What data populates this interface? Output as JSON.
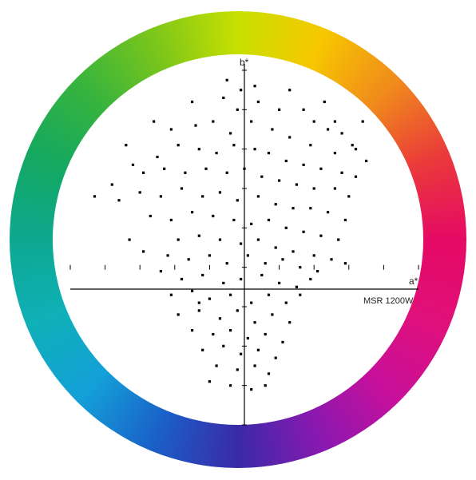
{
  "colors": {
    "ring_stops": [
      "#c8e000",
      "#f7c700",
      "#f08a1c",
      "#ea3a3a",
      "#e50a64",
      "#e0107a",
      "#c8109a",
      "#8a18b0",
      "#3a2aa8",
      "#1a60c8",
      "#14a0d8",
      "#0fb0b8",
      "#0ea890",
      "#14a860",
      "#38b43c",
      "#7cc61a",
      "#c8e000"
    ],
    "axis": "#000000",
    "point": "#000000"
  },
  "chart_data": {
    "type": "scatter",
    "title": "",
    "xlabel": "a*",
    "ylabel": "b*",
    "annotation": "MSR 1200W",
    "xlim": [
      -100,
      100
    ],
    "ylim": [
      -80,
      100
    ],
    "grid": false,
    "legend": "none",
    "points": [
      [
        -10,
        95
      ],
      [
        -2,
        90
      ],
      [
        6,
        92
      ],
      [
        -30,
        84
      ],
      [
        -12,
        86
      ],
      [
        8,
        84
      ],
      [
        20,
        80
      ],
      [
        34,
        80
      ],
      [
        40,
        74
      ],
      [
        48,
        70
      ],
      [
        56,
        68
      ],
      [
        -42,
        70
      ],
      [
        -28,
        72
      ],
      [
        -18,
        74
      ],
      [
        -8,
        68
      ],
      [
        4,
        74
      ],
      [
        16,
        70
      ],
      [
        26,
        66
      ],
      [
        38,
        62
      ],
      [
        52,
        58
      ],
      [
        62,
        62
      ],
      [
        64,
        60
      ],
      [
        -50,
        56
      ],
      [
        -38,
        62
      ],
      [
        -26,
        60
      ],
      [
        -16,
        58
      ],
      [
        -6,
        62
      ],
      [
        6,
        60
      ],
      [
        14,
        58
      ],
      [
        24,
        54
      ],
      [
        34,
        52
      ],
      [
        44,
        50
      ],
      [
        56,
        48
      ],
      [
        64,
        46
      ],
      [
        -58,
        48
      ],
      [
        -46,
        50
      ],
      [
        -34,
        48
      ],
      [
        -22,
        50
      ],
      [
        -10,
        48
      ],
      [
        0,
        50
      ],
      [
        10,
        46
      ],
      [
        20,
        44
      ],
      [
        30,
        42
      ],
      [
        40,
        40
      ],
      [
        52,
        40
      ],
      [
        60,
        36
      ],
      [
        -72,
        34
      ],
      [
        -60,
        38
      ],
      [
        -48,
        36
      ],
      [
        -36,
        40
      ],
      [
        -24,
        36
      ],
      [
        -14,
        38
      ],
      [
        -4,
        34
      ],
      [
        8,
        36
      ],
      [
        18,
        32
      ],
      [
        28,
        30
      ],
      [
        38,
        30
      ],
      [
        48,
        28
      ],
      [
        58,
        24
      ],
      [
        -54,
        26
      ],
      [
        -42,
        24
      ],
      [
        -30,
        28
      ],
      [
        -18,
        26
      ],
      [
        -6,
        24
      ],
      [
        4,
        22
      ],
      [
        14,
        24
      ],
      [
        24,
        20
      ],
      [
        34,
        18
      ],
      [
        44,
        16
      ],
      [
        54,
        14
      ],
      [
        -38,
        14
      ],
      [
        -26,
        16
      ],
      [
        -14,
        14
      ],
      [
        -2,
        12
      ],
      [
        8,
        14
      ],
      [
        18,
        10
      ],
      [
        28,
        8
      ],
      [
        40,
        6
      ],
      [
        50,
        4
      ],
      [
        58,
        2
      ],
      [
        -44,
        6
      ],
      [
        -32,
        4
      ],
      [
        -20,
        6
      ],
      [
        -10,
        2
      ],
      [
        2,
        6
      ],
      [
        12,
        2
      ],
      [
        22,
        4
      ],
      [
        32,
        0
      ],
      [
        42,
        -2
      ],
      [
        -36,
        -6
      ],
      [
        -24,
        -4
      ],
      [
        -12,
        -8
      ],
      [
        -2,
        -6
      ],
      [
        10,
        -4
      ],
      [
        20,
        -8
      ],
      [
        30,
        -10
      ],
      [
        38,
        -6
      ],
      [
        -42,
        -14
      ],
      [
        -30,
        -12
      ],
      [
        -20,
        -16
      ],
      [
        -8,
        -14
      ],
      [
        4,
        -18
      ],
      [
        14,
        -14
      ],
      [
        24,
        -18
      ],
      [
        32,
        -14
      ],
      [
        -38,
        -24
      ],
      [
        -26,
        -22
      ],
      [
        -14,
        -26
      ],
      [
        -4,
        -22
      ],
      [
        6,
        -28
      ],
      [
        16,
        -24
      ],
      [
        26,
        -28
      ],
      [
        -30,
        -32
      ],
      [
        -18,
        -34
      ],
      [
        -8,
        -32
      ],
      [
        2,
        -36
      ],
      [
        12,
        -34
      ],
      [
        22,
        -38
      ],
      [
        -24,
        -42
      ],
      [
        -12,
        -40
      ],
      [
        -2,
        -44
      ],
      [
        8,
        -42
      ],
      [
        18,
        -46
      ],
      [
        -16,
        -50
      ],
      [
        -4,
        -52
      ],
      [
        6,
        -50
      ],
      [
        14,
        -54
      ],
      [
        -20,
        -58
      ],
      [
        -8,
        -60
      ],
      [
        4,
        -62
      ],
      [
        12,
        -60
      ],
      [
        -26,
        -18
      ],
      [
        -48,
        -2
      ],
      [
        -58,
        8
      ],
      [
        -66,
        14
      ],
      [
        -76,
        42
      ],
      [
        -86,
        36
      ],
      [
        -64,
        52
      ],
      [
        -68,
        62
      ],
      [
        46,
        84
      ],
      [
        52,
        74
      ],
      [
        68,
        74
      ],
      [
        70,
        54
      ],
      [
        -52,
        74
      ],
      [
        26,
        90
      ],
      [
        -4,
        80
      ]
    ]
  }
}
